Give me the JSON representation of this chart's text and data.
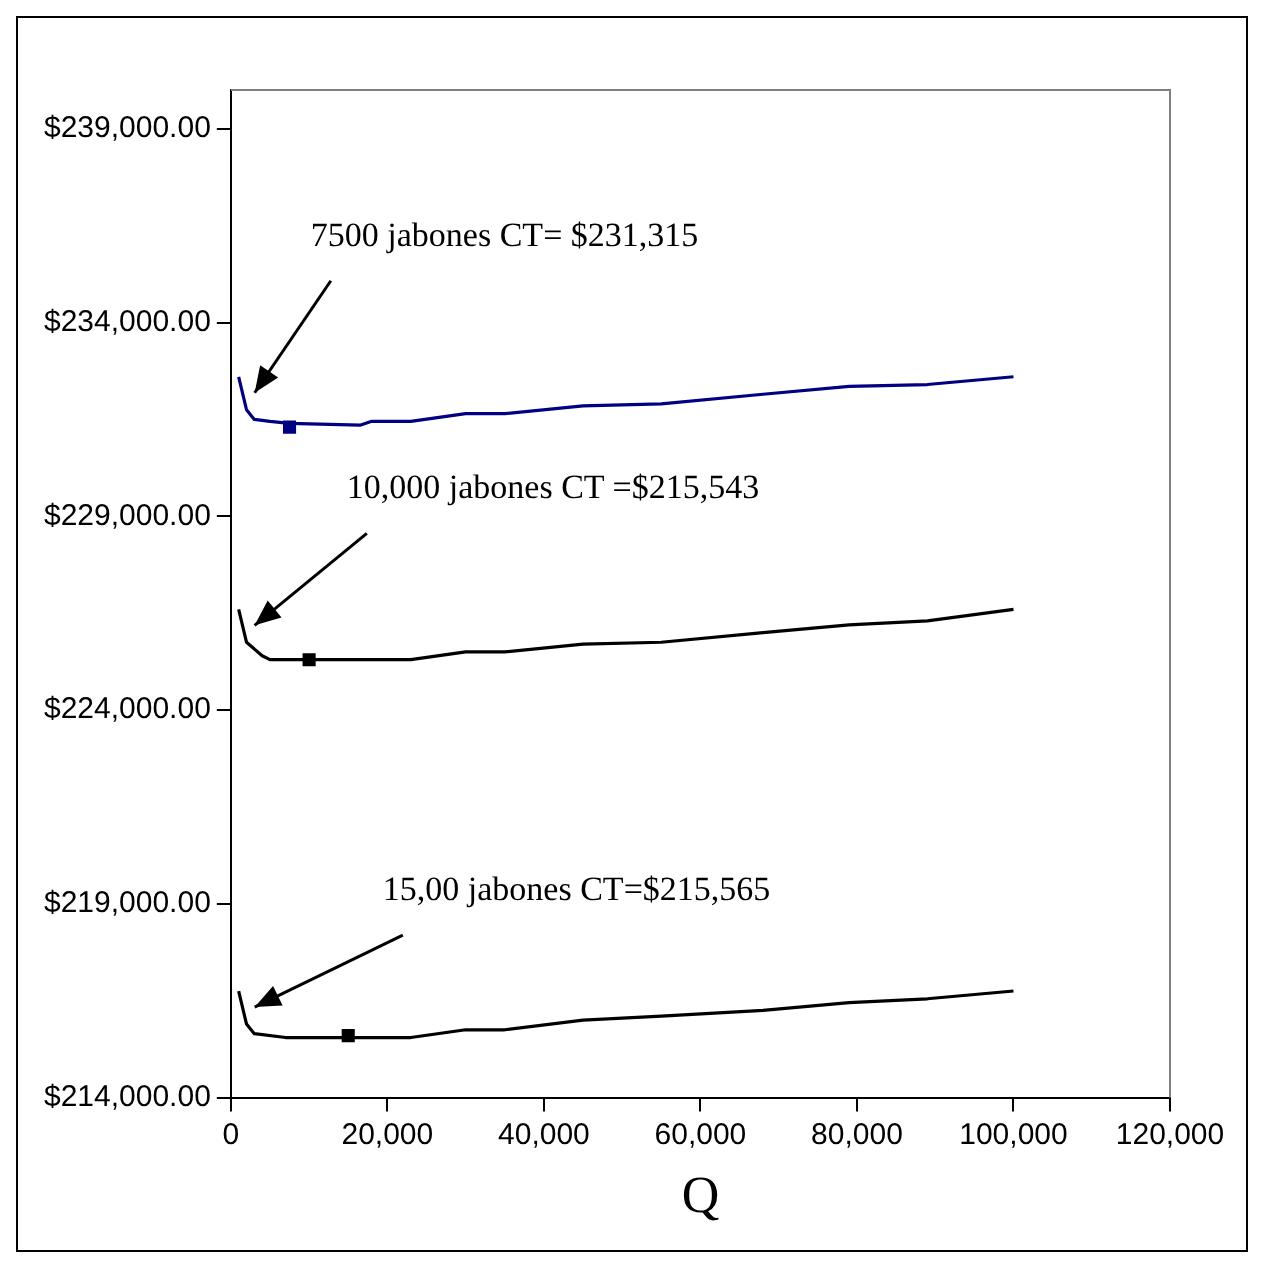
{
  "chart_data": {
    "type": "line",
    "xlabel": "Q",
    "xlim": [
      0,
      120000
    ],
    "ylim": [
      214000,
      240000
    ],
    "xticks": [
      0,
      {
        "value": 20000,
        "label": "20,000"
      },
      {
        "value": 40000,
        "label": "40,000"
      },
      {
        "value": 60000,
        "label": "60,000"
      },
      {
        "value": 80000,
        "label": "80,000"
      },
      {
        "value": 100000,
        "label": "100,000"
      },
      {
        "value": 120000,
        "label": "120,000"
      }
    ],
    "yticks": [
      {
        "value": 214000,
        "label": "$214,000.00"
      },
      {
        "value": 219000,
        "label": "$219,000.00"
      },
      {
        "value": 224000,
        "label": "$224,000.00"
      },
      {
        "value": 229000,
        "label": "$229,000.00"
      },
      {
        "value": 234000,
        "label": "$234,000.00"
      },
      {
        "value": 239000,
        "label": "$239,000.00"
      }
    ],
    "grid": false,
    "legend": false,
    "marker": "none",
    "series": [
      {
        "color": "#000080",
        "x": [
          1000,
          2000,
          3000,
          5000,
          7500,
          16500,
          18000,
          23000,
          30000,
          35000,
          45000,
          55000,
          68000,
          79000,
          89000,
          100000
        ],
        "values": [
          232600,
          231750,
          231500,
          231450,
          231400,
          231350,
          231450,
          231450,
          231650,
          231650,
          231850,
          231900,
          232150,
          232350,
          232400,
          232600
        ]
      },
      {
        "color": "#000000",
        "x": [
          1000,
          2000,
          4000,
          5000,
          10000,
          23000,
          30000,
          35000,
          45000,
          55000,
          68000,
          79000,
          89000,
          100000
        ],
        "values": [
          226600,
          225750,
          225400,
          225300,
          225300,
          225300,
          225500,
          225500,
          225700,
          225750,
          226000,
          226200,
          226300,
          226600
        ]
      },
      {
        "color": "#000000",
        "x": [
          1000,
          2000,
          3000,
          7000,
          15000,
          23000,
          30000,
          35000,
          45000,
          55000,
          68000,
          79000,
          89000,
          100000
        ],
        "values": [
          216750,
          215900,
          215650,
          215550,
          215550,
          215550,
          215750,
          215750,
          216000,
          216100,
          216250,
          216450,
          216550,
          216750
        ]
      },
      {
        "marker": "square",
        "color": "#000080",
        "x": [
          7500
        ],
        "values": [
          231300
        ]
      },
      {
        "marker": "square",
        "color": "#000000",
        "x": [
          10000
        ],
        "values": [
          225300
        ]
      },
      {
        "marker": "square",
        "color": "#000000",
        "x": [
          15000
        ],
        "values": [
          215600
        ]
      }
    ],
    "annotations": [
      "7500 jabones CT= $231,315",
      "10,000 jabones CT =$215,543",
      "15,00 jabones CT=$215,565"
    ]
  }
}
